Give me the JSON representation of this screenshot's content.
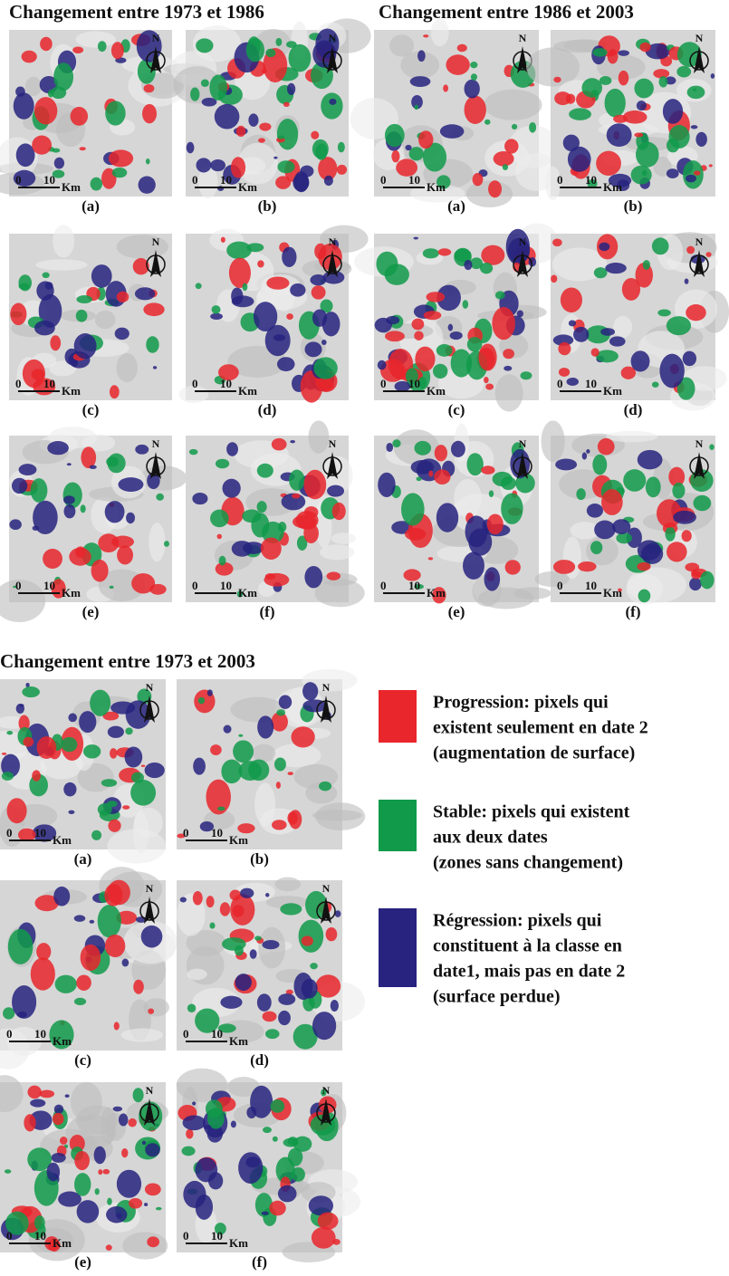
{
  "north": "N",
  "scale": {
    "zero": "0",
    "ten": "10",
    "unit": "Km"
  },
  "groups": [
    {
      "title": "Changement entre 1973 et 1986",
      "panels": [
        "(a)",
        "(b)",
        "(c)",
        "(d)",
        "(e)",
        "(f)"
      ]
    },
    {
      "title": "Changement entre 1986 et 2003",
      "panels": [
        "(a)",
        "(b)",
        "(c)",
        "(d)",
        "(e)",
        "(f)"
      ]
    },
    {
      "title": "Changement entre 1973 et 2003",
      "panels": [
        "(a)",
        "(b)",
        "(c)",
        "(d)",
        "(e)",
        "(f)"
      ]
    }
  ],
  "legend": [
    {
      "color": "#e8262b",
      "lines": [
        "Progression: pixels qui",
        "existent seulement en date 2",
        "(augmentation de surface)"
      ]
    },
    {
      "color": "#109a4a",
      "lines": [
        "Stable: pixels qui existent",
        "aux deux dates",
        "(zones sans changement)"
      ]
    },
    {
      "color": "#27237f",
      "lines": [
        "Régression: pixels qui",
        "constituent à la classe en",
        "date1, mais pas en date 2",
        "(surface perdue)"
      ]
    }
  ]
}
